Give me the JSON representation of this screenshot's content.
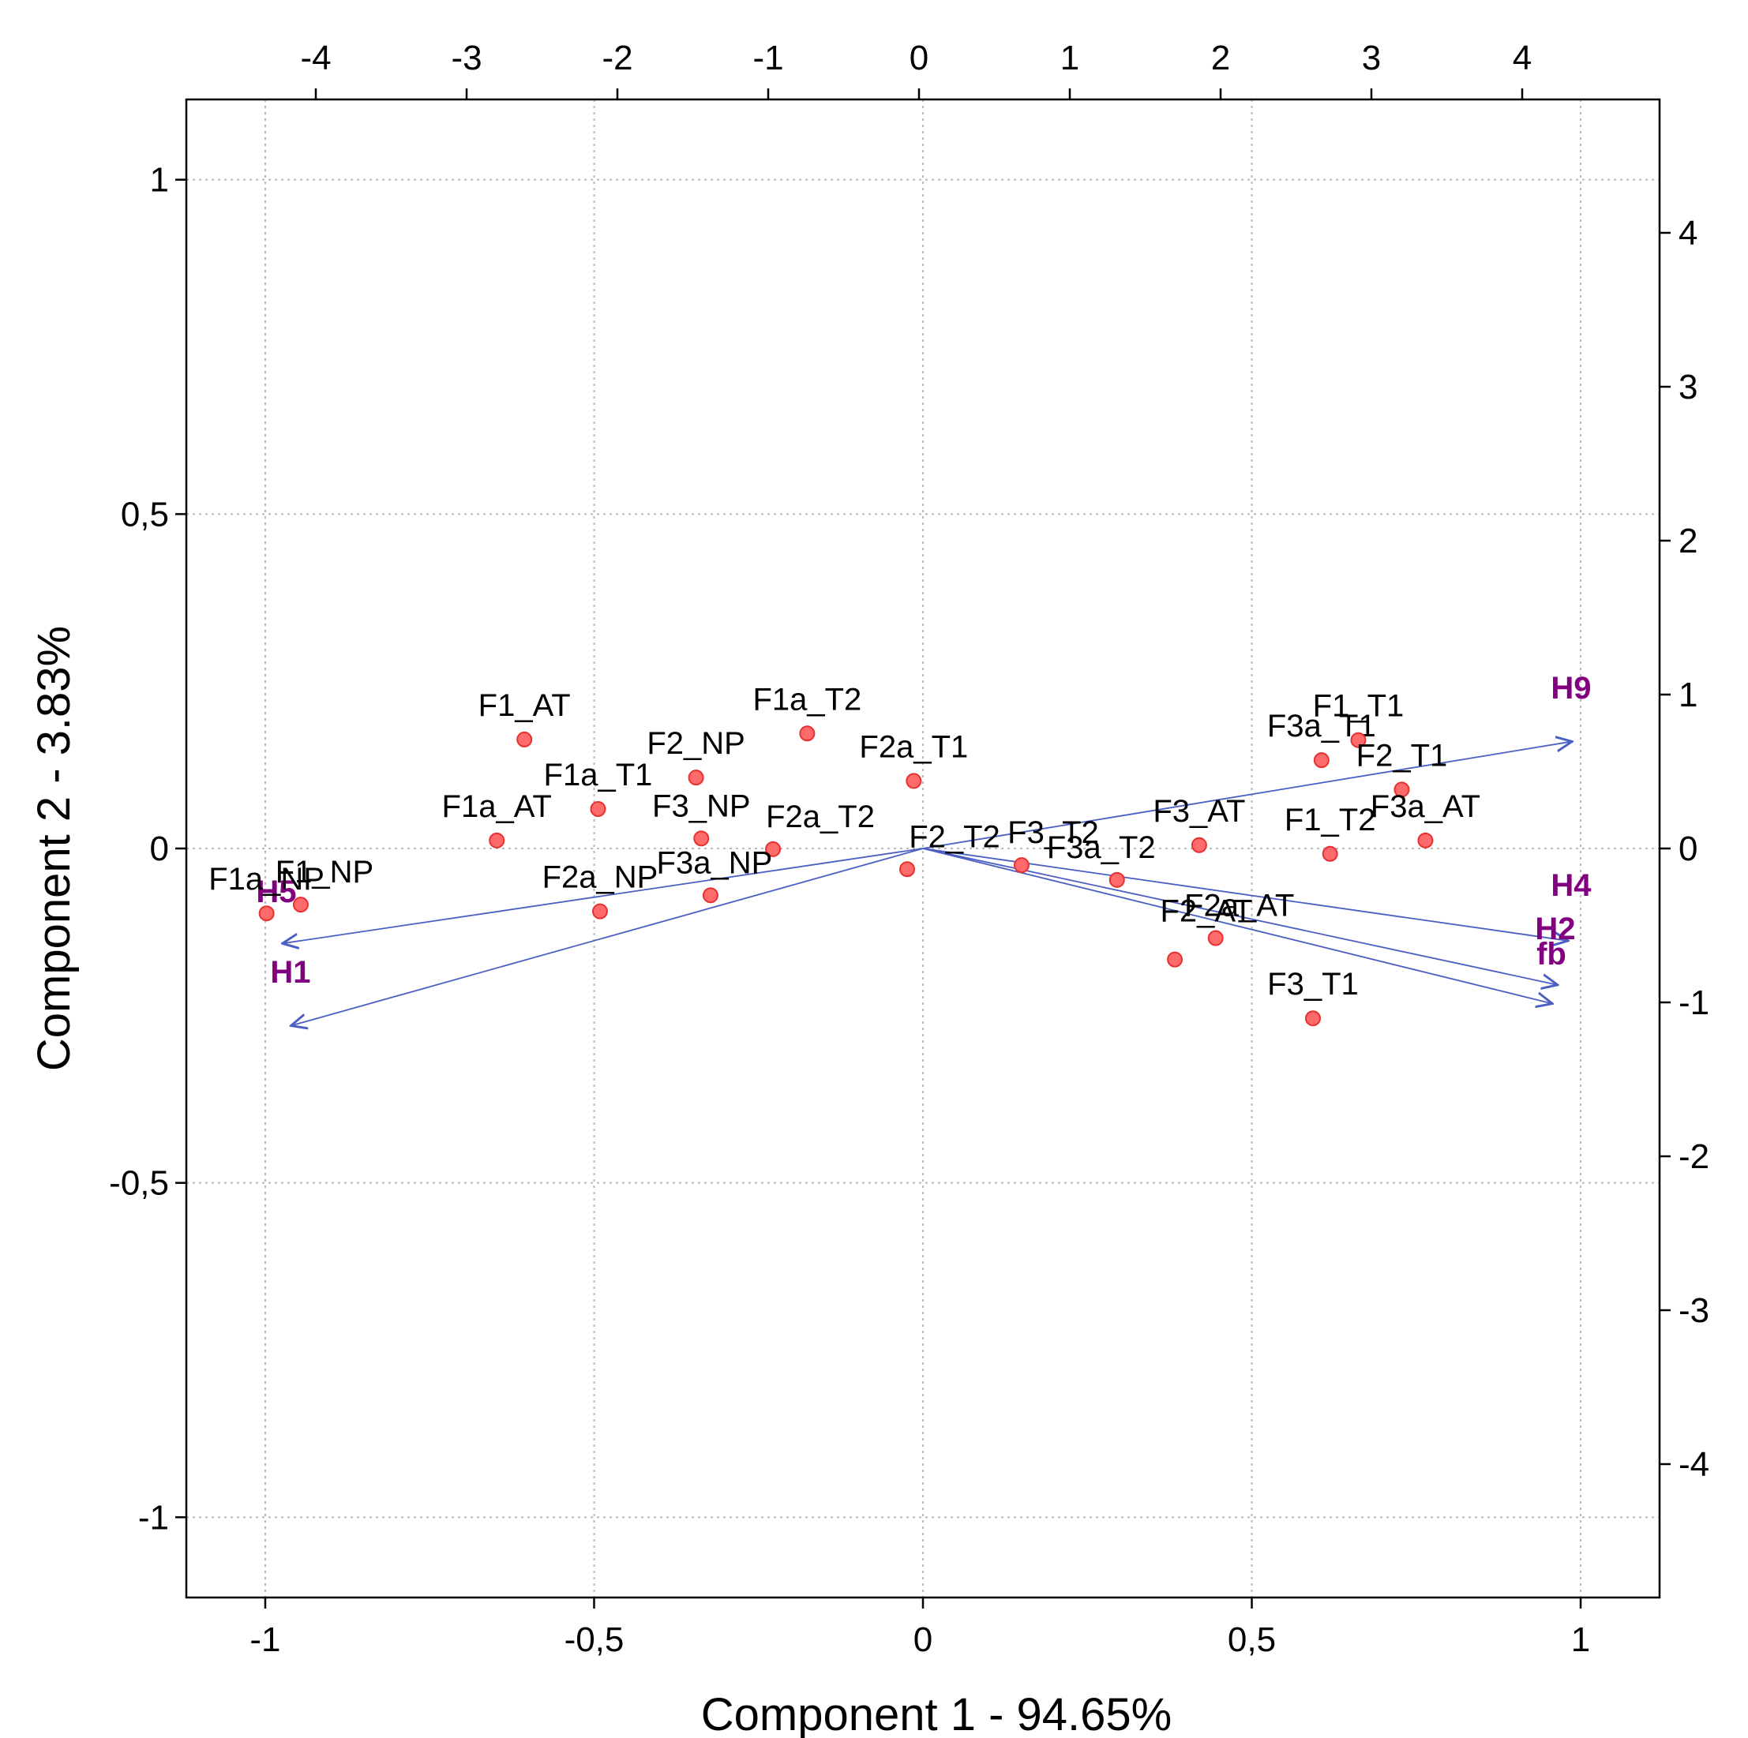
{
  "chart_data": {
    "type": "scatter",
    "subtype": "biplot",
    "title": "",
    "xlabel": "Component 1 - 94.65%",
    "ylabel": "Component 2 - 3.83%",
    "xlim": [
      -1.12,
      1.12
    ],
    "ylim": [
      -1.12,
      1.12
    ],
    "x_ticks": [
      -1,
      -0.5,
      0,
      0.5,
      1
    ],
    "x_tick_labels": [
      "-1",
      "-0,5",
      "0",
      "0,5",
      "1"
    ],
    "y_ticks": [
      -1,
      -0.5,
      0,
      0.5,
      1
    ],
    "y_tick_labels": [
      "-1",
      "-0,5",
      "0",
      "0,5",
      "1"
    ],
    "top_ticks": [
      -4,
      -3,
      -2,
      -1,
      0,
      1,
      2,
      3,
      4
    ],
    "top_tick_labels": [
      "-4",
      "-3",
      "-2",
      "-1",
      "0",
      "1",
      "2",
      "3",
      "4"
    ],
    "right_ticks": [
      4,
      3,
      2,
      1,
      0,
      -1,
      -2,
      -3,
      -4
    ],
    "right_tick_labels": [
      "4",
      "3",
      "2",
      "1",
      "0",
      "-1",
      "-2",
      "-3",
      "-4"
    ],
    "grid": true,
    "point_color": "#ff6b6b",
    "point_edge_color": "#e83030",
    "vector_color": "#4a5fc1",
    "vector_label_color": "#800080",
    "points": [
      {
        "label": "F1_AT",
        "x": -0.606,
        "y": 0.163
      },
      {
        "label": "F1a_T2",
        "x": -0.176,
        "y": 0.172
      },
      {
        "label": "F2_NP",
        "x": -0.345,
        "y": 0.106
      },
      {
        "label": "F2a_T1",
        "x": -0.014,
        "y": 0.101
      },
      {
        "label": "F1a_T1",
        "x": -0.494,
        "y": 0.059
      },
      {
        "label": "F1a_AT",
        "x": -0.648,
        "y": 0.012
      },
      {
        "label": "F3_NP",
        "x": -0.337,
        "y": 0.015
      },
      {
        "label": "F2a_T2",
        "x": -0.228,
        "y": -0.001
      },
      {
        "label": "F1_NP",
        "x": -0.946,
        "y": -0.084
      },
      {
        "label": "F1a_NP",
        "x": -0.998,
        "y": -0.097
      },
      {
        "label": "F2a_NP",
        "x": -0.491,
        "y": -0.094
      },
      {
        "label": "F3a_NP",
        "x": -0.323,
        "y": -0.07
      },
      {
        "label": "F2_T2",
        "x": -0.024,
        "y": -0.031
      },
      {
        "label": "F3_T2",
        "x": 0.15,
        "y": -0.025
      },
      {
        "label": "F3a_T2",
        "x": 0.295,
        "y": -0.047
      },
      {
        "label": "F3_AT",
        "x": 0.42,
        "y": 0.005
      },
      {
        "label": "F2a_AT",
        "x": 0.445,
        "y": -0.134
      },
      {
        "label": "F2_AT",
        "x": 0.383,
        "y": -0.166
      },
      {
        "label": "F3_T1",
        "x": 0.593,
        "y": -0.254
      },
      {
        "label": "F3a_T1",
        "x": 0.606,
        "y": 0.132
      },
      {
        "label": "F1_T1",
        "x": 0.662,
        "y": 0.162
      },
      {
        "label": "F2_T1",
        "x": 0.728,
        "y": 0.088
      },
      {
        "label": "F1_T2",
        "x": 0.619,
        "y": -0.008
      },
      {
        "label": "F3a_AT",
        "x": 0.764,
        "y": 0.012
      }
    ],
    "vectors": [
      {
        "label": "H9",
        "x": 0.987,
        "y": 0.16
      },
      {
        "label": "H4",
        "x": 0.981,
        "y": -0.138
      },
      {
        "label": "H2",
        "x": 0.965,
        "y": -0.204
      },
      {
        "label": "fb",
        "x": 0.957,
        "y": -0.232
      },
      {
        "label": "H5",
        "x": -0.974,
        "y": -0.142
      },
      {
        "label": "H1",
        "x": -0.961,
        "y": -0.265
      }
    ]
  }
}
